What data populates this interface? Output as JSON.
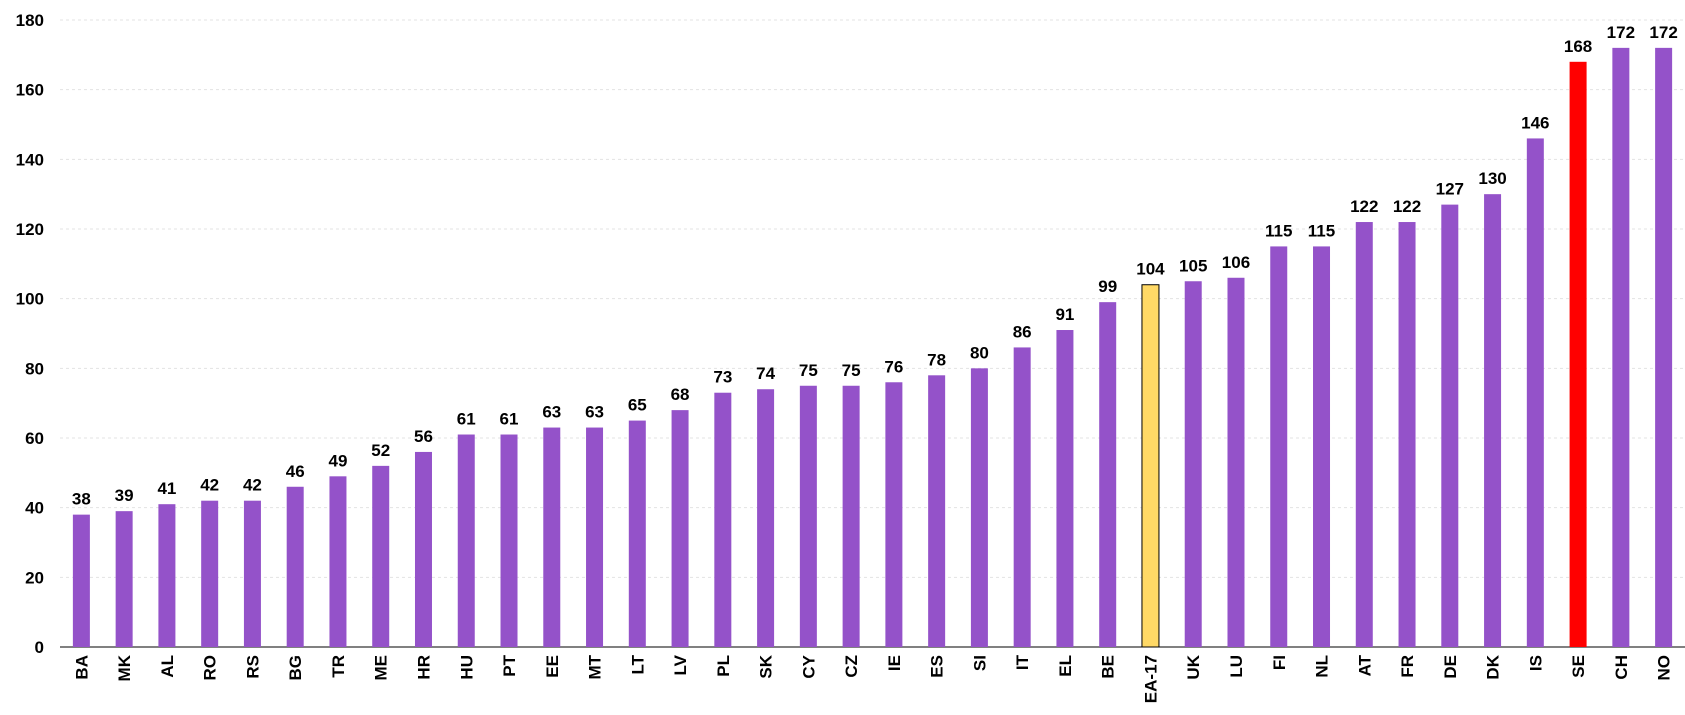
{
  "chart_data": {
    "type": "bar",
    "categories": [
      "BA",
      "MK",
      "AL",
      "RO",
      "RS",
      "BG",
      "TR",
      "ME",
      "HR",
      "HU",
      "PT",
      "EE",
      "MT",
      "LT",
      "LV",
      "PL",
      "SK",
      "CY",
      "CZ",
      "IE",
      "ES",
      "SI",
      "IT",
      "EL",
      "BE",
      "EA-17",
      "UK",
      "LU",
      "FI",
      "NL",
      "AT",
      "FR",
      "DE",
      "DK",
      "IS",
      "SE",
      "CH",
      "NO"
    ],
    "values": [
      38,
      39,
      41,
      42,
      42,
      46,
      49,
      52,
      56,
      61,
      61,
      63,
      63,
      65,
      68,
      73,
      74,
      75,
      75,
      76,
      78,
      80,
      86,
      91,
      99,
      104,
      105,
      106,
      115,
      115,
      122,
      122,
      127,
      130,
      146,
      168,
      172,
      172
    ],
    "colors": [
      "#9452c9",
      "#9452c9",
      "#9452c9",
      "#9452c9",
      "#9452c9",
      "#9452c9",
      "#9452c9",
      "#9452c9",
      "#9452c9",
      "#9452c9",
      "#9452c9",
      "#9452c9",
      "#9452c9",
      "#9452c9",
      "#9452c9",
      "#9452c9",
      "#9452c9",
      "#9452c9",
      "#9452c9",
      "#9452c9",
      "#9452c9",
      "#9452c9",
      "#9452c9",
      "#9452c9",
      "#9452c9",
      "#ffd966",
      "#9452c9",
      "#9452c9",
      "#9452c9",
      "#9452c9",
      "#9452c9",
      "#9452c9",
      "#9452c9",
      "#9452c9",
      "#9452c9",
      "#ff0000",
      "#9452c9",
      "#9452c9"
    ],
    "ylim": [
      0,
      180
    ],
    "yticks": [
      0,
      20,
      40,
      60,
      80,
      100,
      120,
      140,
      160,
      180
    ],
    "grid": true
  }
}
